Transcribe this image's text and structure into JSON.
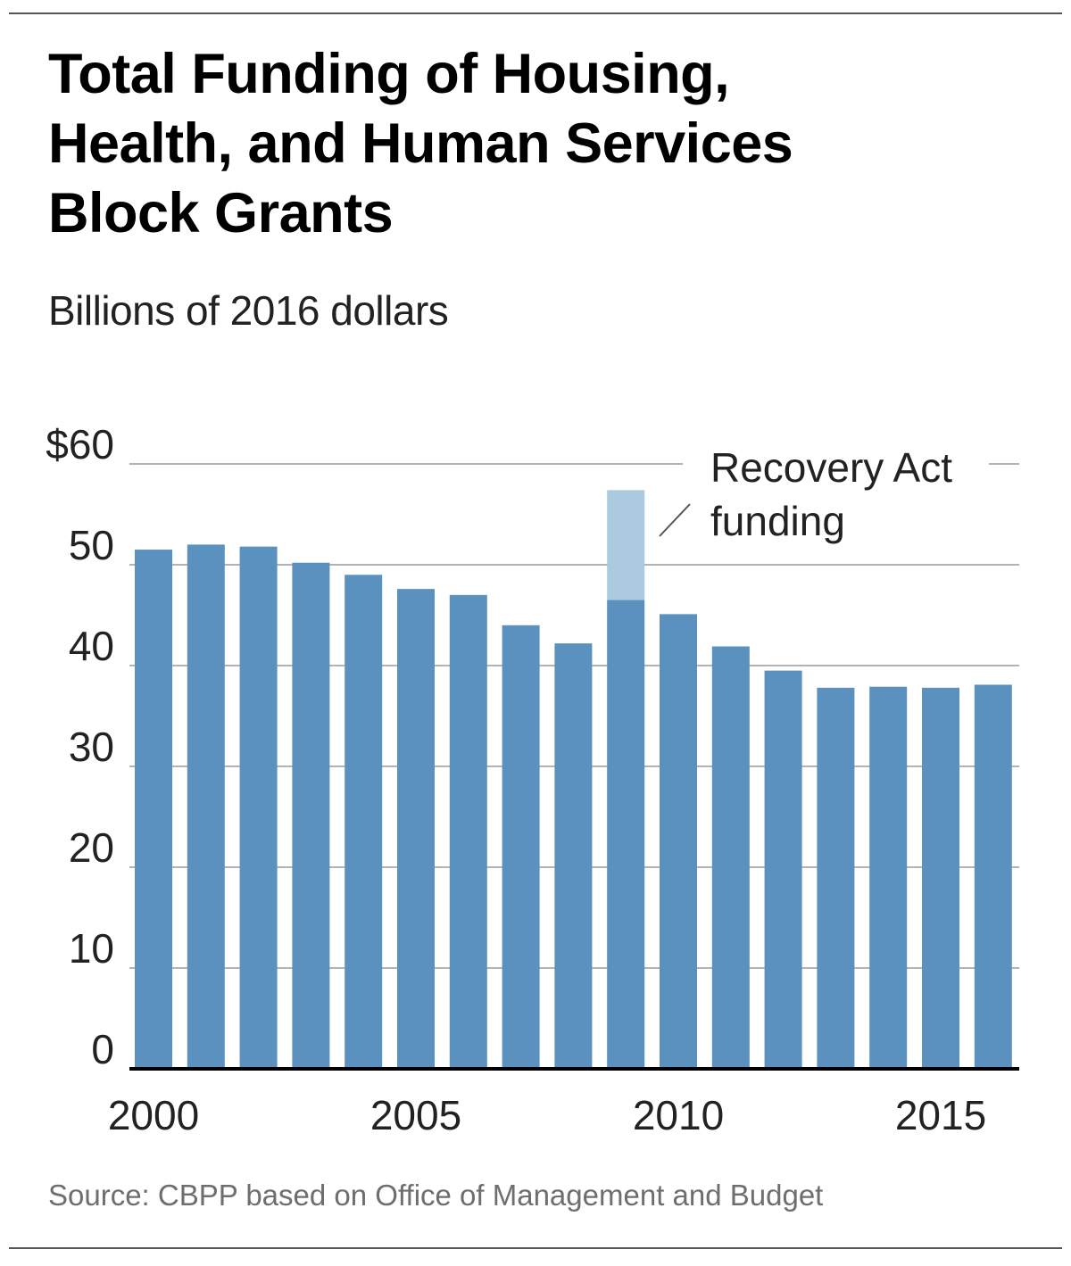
{
  "title_lines": [
    "Total Funding of Housing,",
    "Health, and Human Services",
    "Block Grants"
  ],
  "subtitle": "Billions of 2016 dollars",
  "source": "Source: CBPP based on Office of Management and Budget",
  "colors": {
    "base_bar": "#5a91bf",
    "recovery_bar": "#abc9df",
    "gridline": "#9a9a9a",
    "baseline": "#000000"
  },
  "chart_data": {
    "type": "bar",
    "stacked": true,
    "title": "Total Funding of Housing, Health, and Human Services Block Grants",
    "subtitle": "Billions of 2016 dollars",
    "xlabel": "",
    "ylabel": "",
    "ylim": [
      0,
      60
    ],
    "yticks": [
      0,
      10,
      20,
      30,
      40,
      50,
      60
    ],
    "ytick_labels": [
      "0",
      "10",
      "20",
      "30",
      "40",
      "50",
      "$60"
    ],
    "xtick_labels": [
      "2000",
      "2005",
      "2010",
      "2015"
    ],
    "grid": true,
    "categories": [
      2000,
      2001,
      2002,
      2003,
      2004,
      2005,
      2006,
      2007,
      2008,
      2009,
      2010,
      2011,
      2012,
      2013,
      2014,
      2015,
      2016
    ],
    "series": [
      {
        "values": [
          51.5,
          52.0,
          51.8,
          50.2,
          49.0,
          47.6,
          47.0,
          44.0,
          42.2,
          46.5,
          45.1,
          41.9,
          39.5,
          37.8,
          37.9,
          37.8,
          38.1
        ]
      },
      {
        "name": "Recovery Act funding",
        "values": [
          0,
          0,
          0,
          0,
          0,
          0,
          0,
          0,
          0,
          10.9,
          0,
          0,
          0,
          0,
          0,
          0,
          0
        ]
      }
    ],
    "annotation": {
      "lines": [
        "Recovery Act",
        "funding"
      ],
      "points_to": "2009"
    }
  }
}
